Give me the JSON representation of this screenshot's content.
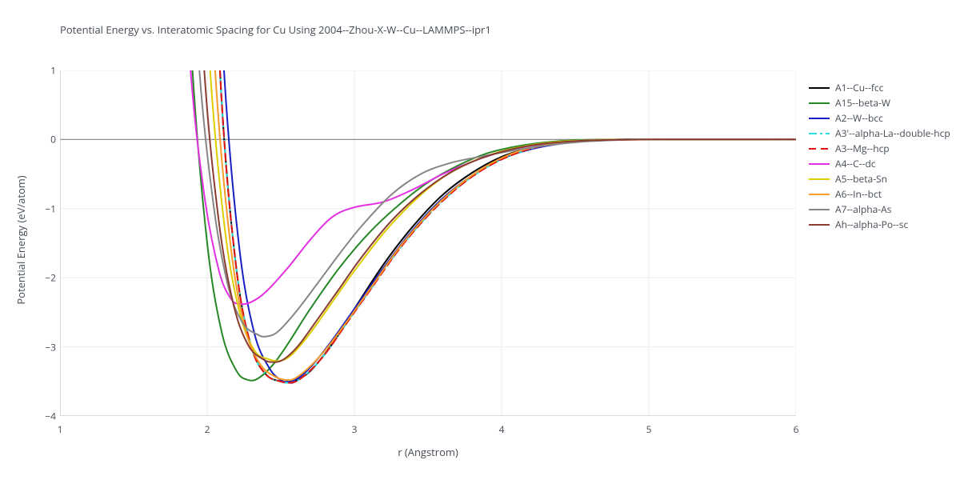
{
  "title": "Potential Energy vs. Interatomic Spacing for Cu Using 2004--Zhou-X-W--Cu--LAMMPS--ipr1",
  "xlabel": "r (Angstrom)",
  "ylabel": "Potential Energy (eV/atom)",
  "xlim": [
    1,
    6
  ],
  "ylim": [
    -4,
    1
  ],
  "xticks": [
    1,
    2,
    3,
    4,
    5,
    6
  ],
  "yticks": [
    -4,
    -3,
    -2,
    -1,
    0,
    1
  ],
  "xtick_labels": [
    "1",
    "2",
    "3",
    "4",
    "5",
    "6"
  ],
  "ytick_labels": [
    "−4",
    "−3",
    "−2",
    "−1",
    "0",
    "1"
  ],
  "plot_bg": "#ffffff",
  "grid_color": "#eeeeee",
  "axis_line_color": "#b7b7b7",
  "zero_line_color": "#909090",
  "text_color": "#444b55",
  "tick_fontsize": 12,
  "label_fontsize": 13,
  "title_fontsize": 13,
  "legend_fontsize": 12,
  "line_width": 2,
  "series": [
    {
      "name": "A1--Cu--fcc",
      "color": "#000000",
      "dash": "solid",
      "x": [
        2.0,
        2.1,
        2.2,
        2.3,
        2.4,
        2.5,
        2.56,
        2.6,
        2.7,
        2.8,
        2.9,
        3.0,
        3.2,
        3.4,
        3.6,
        3.8,
        4.0,
        4.2,
        4.4,
        4.6,
        4.8,
        5.0,
        6.0
      ],
      "y": [
        5.0,
        0.5,
        -1.9,
        -3.0,
        -3.4,
        -3.5,
        -3.52,
        -3.5,
        -3.35,
        -3.1,
        -2.8,
        -2.45,
        -1.8,
        -1.25,
        -0.8,
        -0.48,
        -0.25,
        -0.12,
        -0.05,
        -0.02,
        0.0,
        0.0,
        0.0
      ]
    },
    {
      "name": "A15--beta-W",
      "color": "#278726",
      "dash": "solid",
      "x": [
        1.8,
        1.9,
        2.0,
        2.1,
        2.2,
        2.28,
        2.35,
        2.45,
        2.55,
        2.7,
        2.9,
        3.1,
        3.3,
        3.5,
        3.7,
        3.9,
        4.1,
        4.3,
        4.5,
        4.7,
        5.0,
        6.0
      ],
      "y": [
        5.0,
        1.0,
        -1.5,
        -2.8,
        -3.35,
        -3.48,
        -3.45,
        -3.25,
        -2.95,
        -2.45,
        -1.85,
        -1.35,
        -0.95,
        -0.62,
        -0.38,
        -0.2,
        -0.1,
        -0.04,
        -0.01,
        0.0,
        0.0,
        0.0
      ]
    },
    {
      "name": "A2--W--bcc",
      "color": "#1820c2",
      "dash": "solid",
      "x": [
        2.02,
        2.12,
        2.22,
        2.32,
        2.42,
        2.5,
        2.55,
        2.62,
        2.72,
        2.85,
        3.0,
        3.2,
        3.4,
        3.6,
        3.8,
        4.0,
        4.2,
        4.4,
        4.6,
        4.8,
        5.0,
        6.0
      ],
      "y": [
        5.0,
        0.8,
        -1.6,
        -2.8,
        -3.3,
        -3.48,
        -3.5,
        -3.45,
        -3.25,
        -2.9,
        -2.45,
        -1.85,
        -1.3,
        -0.85,
        -0.52,
        -0.28,
        -0.14,
        -0.06,
        -0.02,
        0.0,
        0.0,
        0.0
      ]
    },
    {
      "name": "A3'--alpha-La--double-hcp",
      "color": "#2adddd",
      "dash": "dashdot",
      "x": [
        2.0,
        2.1,
        2.2,
        2.3,
        2.4,
        2.5,
        2.56,
        2.62,
        2.72,
        2.82,
        2.95,
        3.1,
        3.3,
        3.5,
        3.7,
        3.9,
        4.1,
        4.3,
        4.5,
        4.7,
        5.0,
        6.0
      ],
      "y": [
        5.0,
        0.5,
        -1.9,
        -3.0,
        -3.4,
        -3.5,
        -3.52,
        -3.48,
        -3.3,
        -3.05,
        -2.65,
        -2.2,
        -1.6,
        -1.1,
        -0.7,
        -0.4,
        -0.2,
        -0.08,
        -0.03,
        -0.01,
        0.0,
        0.0
      ]
    },
    {
      "name": "A3--Mg--hcp",
      "color": "#e51010",
      "dash": "dash",
      "x": [
        2.0,
        2.1,
        2.2,
        2.3,
        2.4,
        2.5,
        2.56,
        2.62,
        2.72,
        2.82,
        2.95,
        3.1,
        3.3,
        3.5,
        3.7,
        3.9,
        4.1,
        4.3,
        4.5,
        4.7,
        5.0,
        6.0
      ],
      "y": [
        5.0,
        0.5,
        -1.9,
        -3.0,
        -3.4,
        -3.5,
        -3.52,
        -3.48,
        -3.3,
        -3.05,
        -2.65,
        -2.2,
        -1.6,
        -1.1,
        -0.7,
        -0.4,
        -0.2,
        -0.08,
        -0.03,
        -0.01,
        0.0,
        0.0
      ]
    },
    {
      "name": "A4--C--dc",
      "color": "#e330e3",
      "dash": "solid",
      "x": [
        1.78,
        1.88,
        1.98,
        2.08,
        2.16,
        2.22,
        2.3,
        2.4,
        2.55,
        2.7,
        2.85,
        3.0,
        3.2,
        3.4,
        3.6,
        3.8,
        4.0,
        4.2,
        4.4,
        4.6,
        5.0,
        6.0
      ],
      "y": [
        5.0,
        1.2,
        -0.8,
        -1.9,
        -2.3,
        -2.38,
        -2.35,
        -2.2,
        -1.85,
        -1.45,
        -1.12,
        -0.98,
        -0.9,
        -0.72,
        -0.5,
        -0.32,
        -0.18,
        -0.09,
        -0.04,
        -0.01,
        0.0,
        0.0
      ]
    },
    {
      "name": "A5--beta-Sn",
      "color": "#dece00",
      "dash": "solid",
      "x": [
        1.92,
        2.02,
        2.12,
        2.22,
        2.32,
        2.42,
        2.5,
        2.58,
        2.7,
        2.85,
        3.0,
        3.2,
        3.4,
        3.6,
        3.8,
        4.0,
        4.2,
        4.4,
        4.6,
        4.8,
        5.0,
        6.0
      ],
      "y": [
        5.0,
        1.0,
        -1.3,
        -2.5,
        -3.05,
        -3.18,
        -3.2,
        -3.1,
        -2.8,
        -2.35,
        -1.9,
        -1.35,
        -0.9,
        -0.55,
        -0.32,
        -0.17,
        -0.08,
        -0.03,
        -0.01,
        0.0,
        0.0,
        0.0
      ]
    },
    {
      "name": "A6--In--bct",
      "color": "#f79b29",
      "dash": "solid",
      "x": [
        1.96,
        2.06,
        2.16,
        2.26,
        2.36,
        2.46,
        2.54,
        2.6,
        2.7,
        2.82,
        2.96,
        3.12,
        3.3,
        3.5,
        3.7,
        3.9,
        4.1,
        4.3,
        4.5,
        4.7,
        5.0,
        6.0
      ],
      "y": [
        5.0,
        0.8,
        -1.55,
        -2.75,
        -3.25,
        -3.43,
        -3.48,
        -3.45,
        -3.28,
        -3.0,
        -2.6,
        -2.12,
        -1.58,
        -1.08,
        -0.68,
        -0.38,
        -0.18,
        -0.08,
        -0.03,
        -0.01,
        0.0,
        0.0
      ]
    },
    {
      "name": "A7--alpha-As",
      "color": "#868686",
      "dash": "solid",
      "x": [
        1.84,
        1.94,
        2.04,
        2.14,
        2.24,
        2.34,
        2.4,
        2.48,
        2.6,
        2.75,
        2.9,
        3.05,
        3.25,
        3.45,
        3.65,
        3.85,
        4.05,
        4.25,
        4.45,
        4.65,
        5.0,
        6.0
      ],
      "y": [
        5.0,
        1.2,
        -0.9,
        -2.1,
        -2.65,
        -2.82,
        -2.85,
        -2.78,
        -2.5,
        -2.08,
        -1.65,
        -1.25,
        -0.8,
        -0.5,
        -0.34,
        -0.25,
        -0.17,
        -0.1,
        -0.05,
        -0.02,
        0.0,
        0.0
      ]
    },
    {
      "name": "Ah--alpha-Po--sc",
      "color": "#8a3c33",
      "dash": "solid",
      "x": [
        1.88,
        1.98,
        2.08,
        2.18,
        2.28,
        2.38,
        2.45,
        2.52,
        2.62,
        2.75,
        2.9,
        3.05,
        3.25,
        3.45,
        3.65,
        3.85,
        4.05,
        4.25,
        4.45,
        4.65,
        5.0,
        6.0
      ],
      "y": [
        5.0,
        1.0,
        -1.2,
        -2.4,
        -2.98,
        -3.18,
        -3.22,
        -3.18,
        -2.98,
        -2.6,
        -2.15,
        -1.7,
        -1.18,
        -0.78,
        -0.48,
        -0.28,
        -0.15,
        -0.07,
        -0.03,
        -0.01,
        0.0,
        0.0
      ]
    }
  ]
}
